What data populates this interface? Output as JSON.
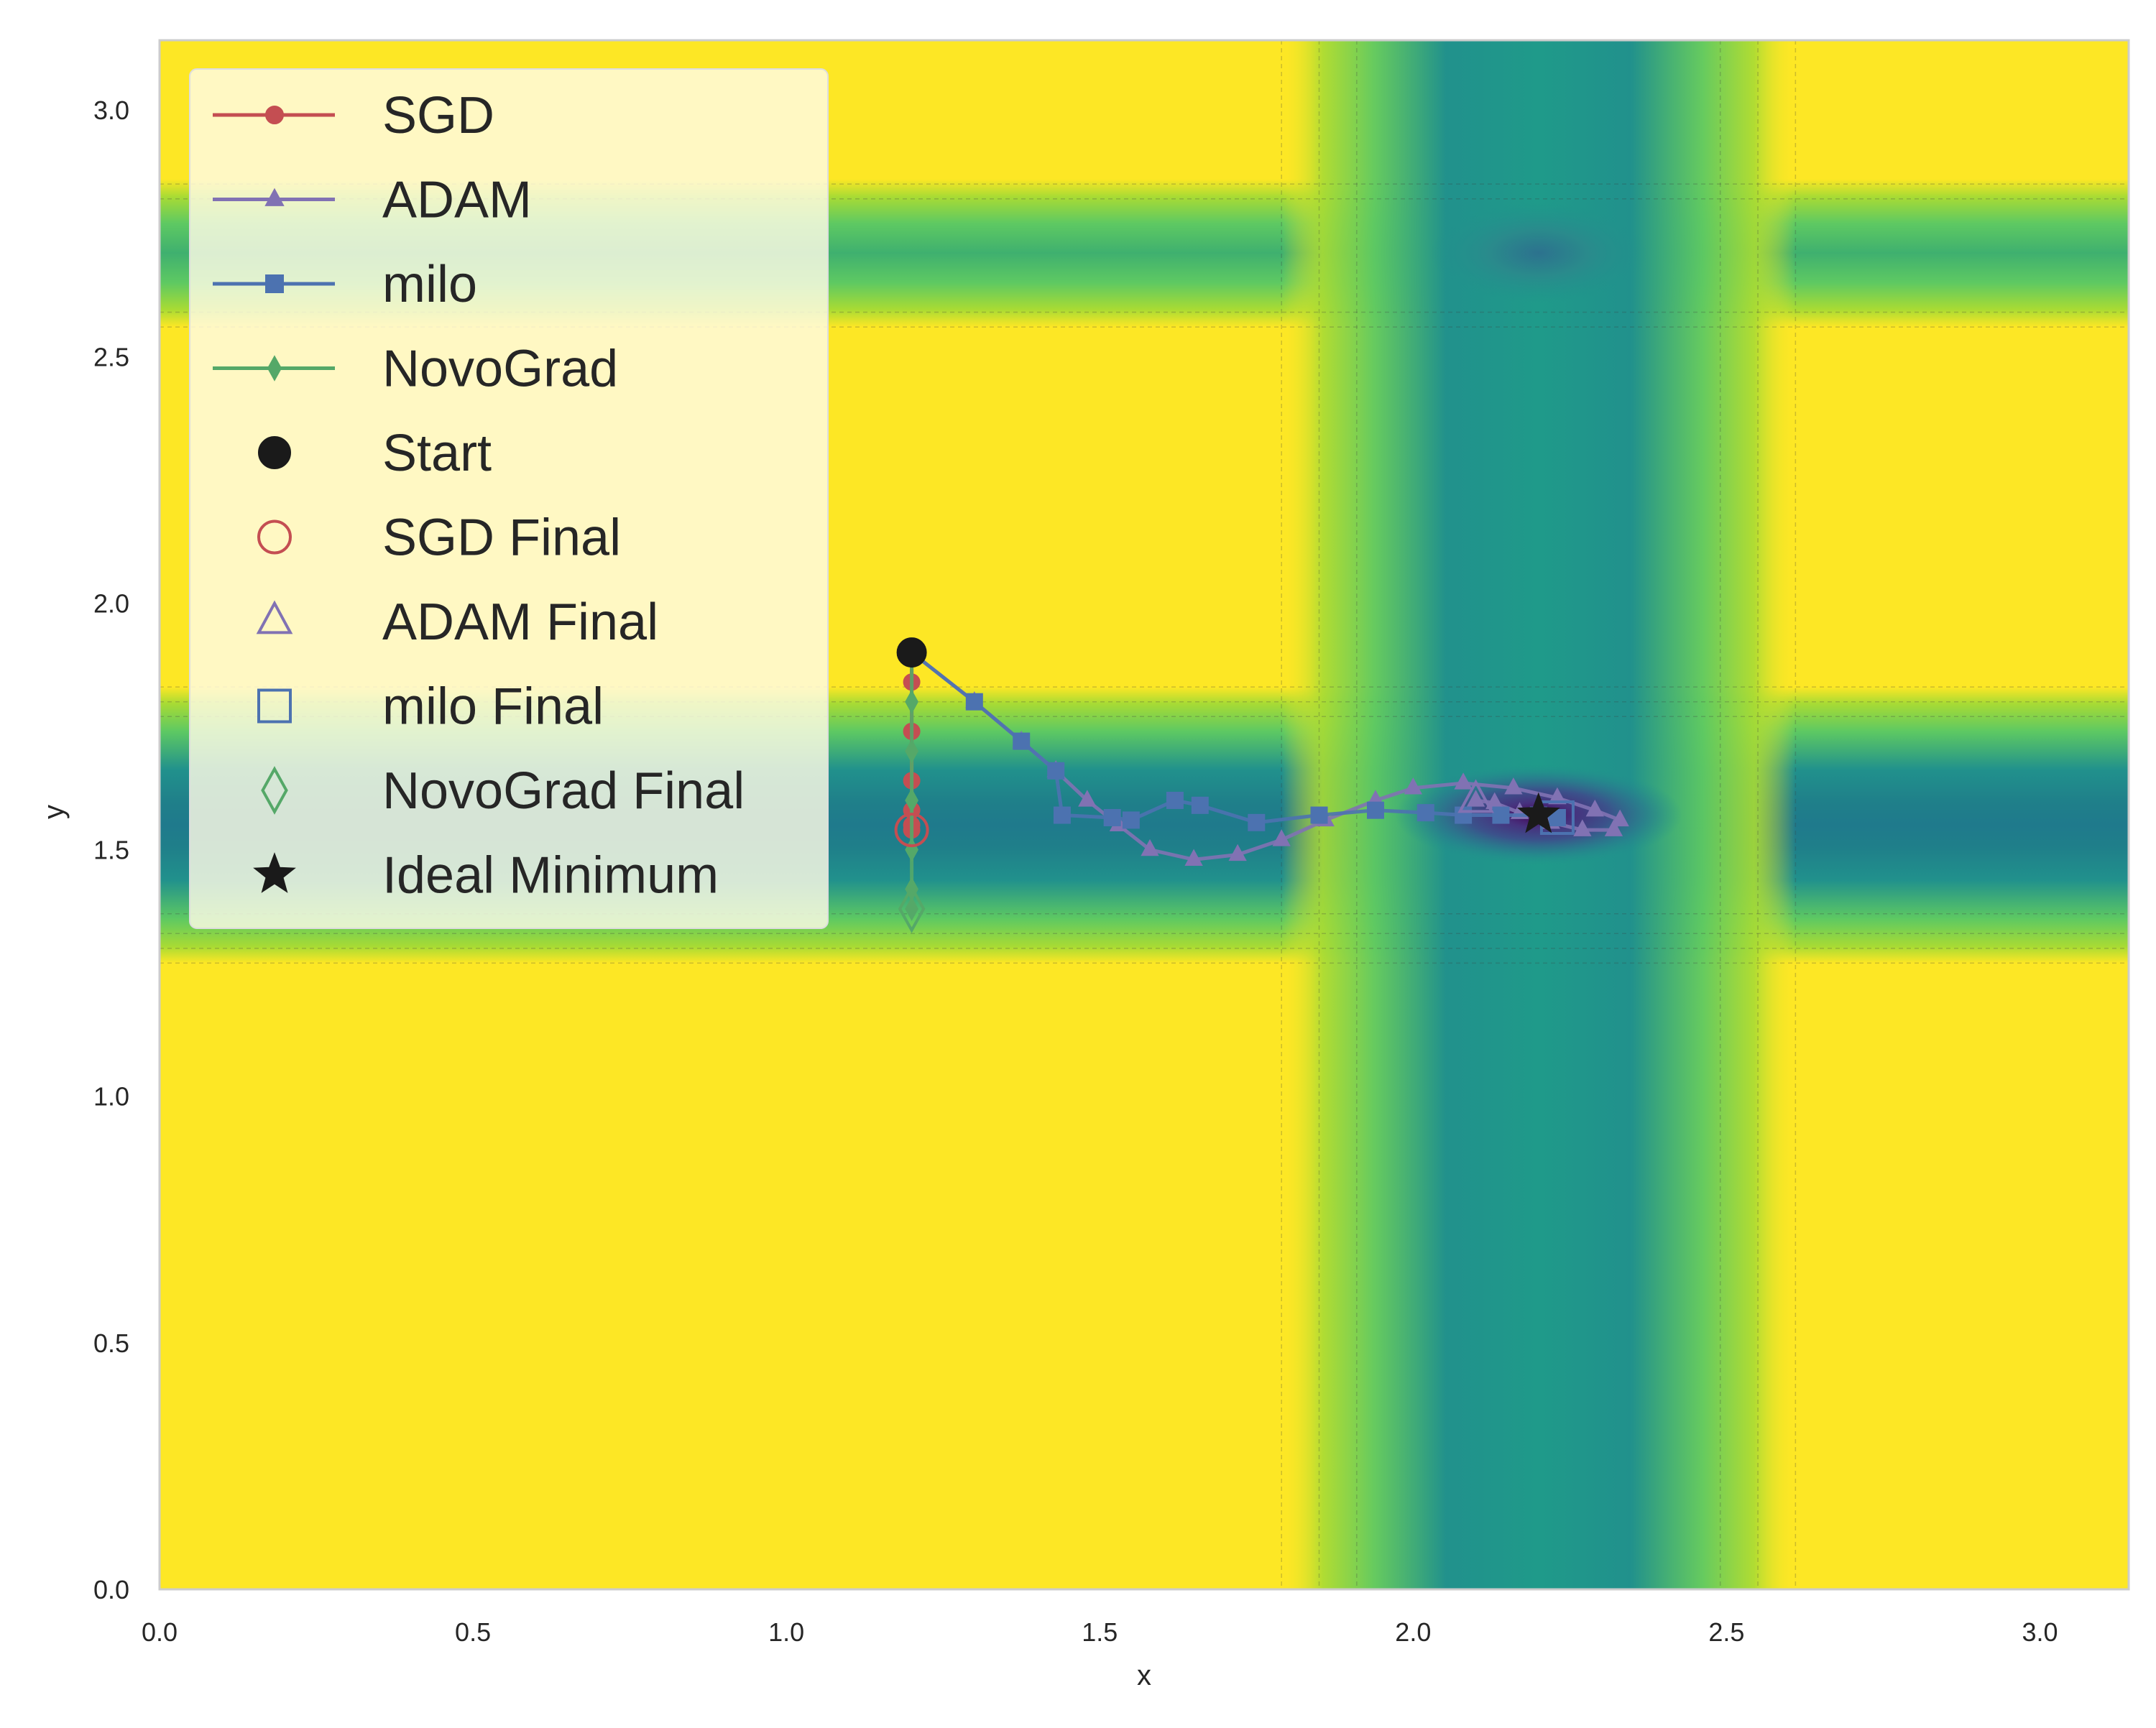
{
  "chart_data": {
    "type": "line",
    "background": "contour",
    "xlabel": "x",
    "ylabel": "y",
    "xlim": [
      0,
      3.1416
    ],
    "ylim": [
      0,
      3.1416
    ],
    "xticks": [
      0.0,
      0.5,
      1.0,
      1.5,
      2.0,
      2.5,
      3.0
    ],
    "yticks": [
      0.0,
      0.5,
      1.0,
      1.5,
      2.0,
      2.5,
      3.0
    ],
    "xtick_labels": [
      "0.0",
      "0.5",
      "1.0",
      "1.5",
      "2.0",
      "2.5",
      "3.0"
    ],
    "ytick_labels": [
      "0.0",
      "0.5",
      "1.0",
      "1.5",
      "2.0",
      "2.5",
      "3.0"
    ],
    "grid": false,
    "legend_position": "upper-left",
    "colormap": [
      "#440154",
      "#3b528b",
      "#21918c",
      "#5ec962",
      "#a8db34",
      "#fde725"
    ],
    "series": [
      {
        "name": "SGD",
        "color": "#c44e52",
        "marker": "circle",
        "points": [
          [
            1.2,
            1.9
          ],
          [
            1.2,
            1.84
          ],
          [
            1.2,
            1.74
          ],
          [
            1.2,
            1.64
          ],
          [
            1.2,
            1.58
          ],
          [
            1.2,
            1.55
          ],
          [
            1.2,
            1.54
          ]
        ]
      },
      {
        "name": "ADAM",
        "color": "#8172b3",
        "marker": "triangle",
        "points": [
          [
            1.2,
            1.9
          ],
          [
            1.3,
            1.8
          ],
          [
            1.375,
            1.72
          ],
          [
            1.43,
            1.66
          ],
          [
            1.48,
            1.6
          ],
          [
            1.53,
            1.55
          ],
          [
            1.58,
            1.5
          ],
          [
            1.65,
            1.48
          ],
          [
            1.72,
            1.49
          ],
          [
            1.79,
            1.52
          ],
          [
            1.86,
            1.56
          ],
          [
            1.94,
            1.6
          ],
          [
            2.0,
            1.625
          ],
          [
            2.08,
            1.635
          ],
          [
            2.16,
            1.625
          ],
          [
            2.23,
            1.605
          ],
          [
            2.29,
            1.58
          ],
          [
            2.33,
            1.56
          ],
          [
            2.32,
            1.54
          ],
          [
            2.27,
            1.54
          ],
          [
            2.22,
            1.555
          ],
          [
            2.17,
            1.575
          ],
          [
            2.13,
            1.595
          ],
          [
            2.1,
            1.6
          ]
        ]
      },
      {
        "name": "milo",
        "color": "#4c72b0",
        "marker": "square",
        "points": [
          [
            1.2,
            1.9
          ],
          [
            1.3,
            1.8
          ],
          [
            1.375,
            1.72
          ],
          [
            1.43,
            1.66
          ],
          [
            1.44,
            1.57
          ],
          [
            1.52,
            1.565
          ],
          [
            1.55,
            1.56
          ],
          [
            1.62,
            1.6
          ],
          [
            1.66,
            1.59
          ],
          [
            1.75,
            1.555
          ],
          [
            1.85,
            1.57
          ],
          [
            1.94,
            1.58
          ],
          [
            2.02,
            1.575
          ],
          [
            2.08,
            1.57
          ],
          [
            2.14,
            1.57
          ],
          [
            2.2,
            1.57
          ],
          [
            2.23,
            1.565
          ]
        ]
      },
      {
        "name": "NovoGrad",
        "color": "#55a868",
        "marker": "diamond",
        "points": [
          [
            1.2,
            1.9
          ],
          [
            1.2,
            1.8
          ],
          [
            1.2,
            1.7
          ],
          [
            1.2,
            1.6
          ],
          [
            1.2,
            1.5
          ],
          [
            1.2,
            1.42
          ],
          [
            1.2,
            1.38
          ]
        ]
      }
    ],
    "start": {
      "name": "Start",
      "x": 1.2,
      "y": 1.9,
      "color": "#1a1a1a"
    },
    "finals": [
      {
        "name": "SGD Final",
        "x": 1.2,
        "y": 1.54,
        "color": "#c44e52",
        "marker": "circle"
      },
      {
        "name": "ADAM Final",
        "x": 2.1,
        "y": 1.6,
        "color": "#8172b3",
        "marker": "triangle"
      },
      {
        "name": "milo Final",
        "x": 2.23,
        "y": 1.565,
        "color": "#4c72b0",
        "marker": "square"
      },
      {
        "name": "NovoGrad Final",
        "x": 1.2,
        "y": 1.38,
        "color": "#55a868",
        "marker": "diamond"
      }
    ],
    "ideal": {
      "name": "Ideal Minimum",
      "x": 2.2,
      "y": 1.5708,
      "color": "#1a1a1a",
      "marker": "star"
    },
    "legend": [
      {
        "label": "SGD",
        "kind": "line",
        "marker": "circle",
        "color": "#c44e52"
      },
      {
        "label": "ADAM",
        "kind": "line",
        "marker": "triangle",
        "color": "#8172b3"
      },
      {
        "label": "milo",
        "kind": "line",
        "marker": "square",
        "color": "#4c72b0"
      },
      {
        "label": "NovoGrad",
        "kind": "line",
        "marker": "diamond",
        "color": "#55a868"
      },
      {
        "label": "Start",
        "kind": "point",
        "marker": "circle-filled",
        "color": "#1a1a1a"
      },
      {
        "label": "SGD Final",
        "kind": "point",
        "marker": "circle-open",
        "color": "#c44e52"
      },
      {
        "label": "ADAM Final",
        "kind": "point",
        "marker": "triangle-open",
        "color": "#8172b3"
      },
      {
        "label": "milo Final",
        "kind": "point",
        "marker": "square-open",
        "color": "#4c72b0"
      },
      {
        "label": "NovoGrad Final",
        "kind": "point",
        "marker": "diamond-open",
        "color": "#55a868"
      },
      {
        "label": "Ideal Minimum",
        "kind": "point",
        "marker": "star",
        "color": "#1a1a1a"
      }
    ]
  }
}
